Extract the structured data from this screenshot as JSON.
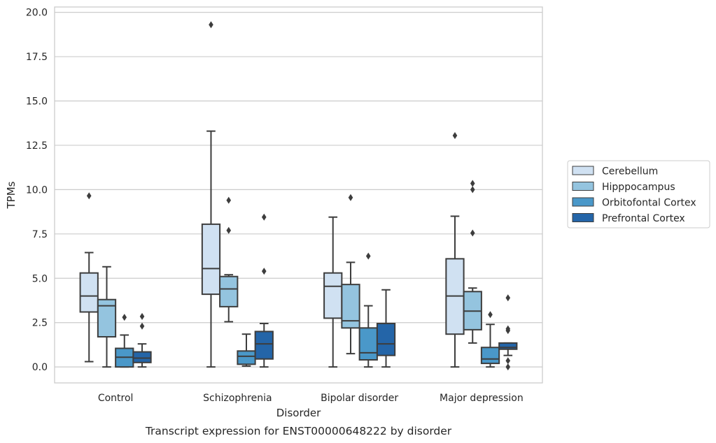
{
  "chart_data": {
    "type": "box",
    "title": "Transcript expression for ENST00000648222 by disorder",
    "xlabel": "Disorder",
    "ylabel": "TPMs",
    "ylim": [
      -0.9,
      20.3
    ],
    "yticks": [
      0.0,
      2.5,
      5.0,
      7.5,
      10.0,
      12.5,
      15.0,
      17.5,
      20.0
    ],
    "ytick_labels": [
      "0.0",
      "2.5",
      "5.0",
      "7.5",
      "10.0",
      "12.5",
      "15.0",
      "17.5",
      "20.0"
    ],
    "grid": "horizontal",
    "legend_position": "right",
    "categories": [
      "Control",
      "Schizophrenia",
      "Bipolar disorder",
      "Major depression"
    ],
    "series": [
      {
        "name": "Cerebellum",
        "color": "#d0e1f2",
        "boxes": [
          {
            "whislo": 0.3,
            "q1": 3.1,
            "med": 4.0,
            "q3": 5.3,
            "whishi": 6.45,
            "fliers": [
              9.65
            ]
          },
          {
            "whislo": 0.0,
            "q1": 4.1,
            "med": 5.55,
            "q3": 8.05,
            "whishi": 13.3,
            "fliers": [
              19.3
            ]
          },
          {
            "whislo": 0.0,
            "q1": 2.75,
            "med": 4.55,
            "q3": 5.3,
            "whishi": 8.45,
            "fliers": []
          },
          {
            "whislo": 0.0,
            "q1": 1.85,
            "med": 4.0,
            "q3": 6.1,
            "whishi": 8.5,
            "fliers": [
              13.05
            ]
          }
        ]
      },
      {
        "name": "Hipppocampus",
        "color": "#94c4df",
        "boxes": [
          {
            "whislo": 0.0,
            "q1": 1.7,
            "med": 3.45,
            "q3": 3.8,
            "whishi": 5.65,
            "fliers": []
          },
          {
            "whislo": 2.55,
            "q1": 3.4,
            "med": 4.4,
            "q3": 5.1,
            "whishi": 5.2,
            "fliers": [
              9.4,
              7.7
            ]
          },
          {
            "whislo": 0.75,
            "q1": 2.2,
            "med": 2.6,
            "q3": 4.65,
            "whishi": 5.9,
            "fliers": [
              9.55
            ]
          },
          {
            "whislo": 1.35,
            "q1": 2.1,
            "med": 3.15,
            "q3": 4.25,
            "whishi": 4.45,
            "fliers": [
              10.35,
              10.0,
              7.55
            ]
          }
        ]
      },
      {
        "name": "Orbitofontal Cortex",
        "color": "#4a98c9",
        "boxes": [
          {
            "whislo": 0.0,
            "q1": 0.0,
            "med": 0.55,
            "q3": 1.05,
            "whishi": 1.8,
            "fliers": [
              2.8
            ]
          },
          {
            "whislo": 0.05,
            "q1": 0.15,
            "med": 0.6,
            "q3": 0.9,
            "whishi": 1.85,
            "fliers": []
          },
          {
            "whislo": 0.0,
            "q1": 0.4,
            "med": 0.8,
            "q3": 2.2,
            "whishi": 3.45,
            "fliers": [
              6.25
            ]
          },
          {
            "whislo": 0.0,
            "q1": 0.2,
            "med": 0.45,
            "q3": 1.1,
            "whishi": 2.4,
            "fliers": [
              2.95
            ]
          }
        ]
      },
      {
        "name": "Prefrontal Cortex",
        "color": "#2465a8",
        "boxes": [
          {
            "whislo": 0.0,
            "q1": 0.25,
            "med": 0.5,
            "q3": 0.85,
            "whishi": 1.3,
            "fliers": [
              2.85,
              2.3
            ]
          },
          {
            "whislo": 0.0,
            "q1": 0.45,
            "med": 1.3,
            "q3": 2.0,
            "whishi": 2.45,
            "fliers": [
              8.45,
              5.4
            ]
          },
          {
            "whislo": 0.0,
            "q1": 0.65,
            "med": 1.3,
            "q3": 2.45,
            "whishi": 4.35,
            "fliers": []
          },
          {
            "whislo": 0.65,
            "q1": 1.0,
            "med": 1.1,
            "q3": 1.35,
            "whishi": 1.35,
            "fliers": [
              3.9,
              2.15,
              2.05,
              0.35,
              0.0
            ]
          }
        ]
      }
    ]
  }
}
